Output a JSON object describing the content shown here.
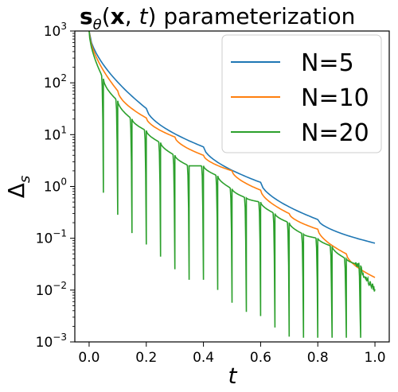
{
  "chart_data": {
    "type": "line",
    "title_parts": {
      "bold_s": "s",
      "theta": "θ",
      "open": "(",
      "bold_x": "x",
      "rest": ", ",
      "t": "t",
      "close": ")",
      "tail": " parameterization"
    },
    "xlabel": "t",
    "ylabel_base": "Δ",
    "ylabel_sub": "s",
    "xlim": [
      -0.05,
      1.05
    ],
    "ylim": [
      0.001,
      1000
    ],
    "yscale": "log",
    "x_ticks": [
      "0.0",
      "0.2",
      "0.4",
      "0.6",
      "0.8",
      "1.0"
    ],
    "x_tick_values": [
      0.0,
      0.2,
      0.4,
      0.6,
      0.8,
      1.0
    ],
    "y_ticks": [
      {
        "base": "10",
        "exp": "−3",
        "value": 0.001
      },
      {
        "base": "10",
        "exp": "−2",
        "value": 0.01
      },
      {
        "base": "10",
        "exp": "−1",
        "value": 0.1
      },
      {
        "base": "10",
        "exp": "0",
        "value": 1
      },
      {
        "base": "10",
        "exp": "1",
        "value": 10
      },
      {
        "base": "10",
        "exp": "2",
        "value": 100
      },
      {
        "base": "10",
        "exp": "3",
        "value": 1000
      }
    ],
    "legend_position": "top-right",
    "series": [
      {
        "name": "N=5",
        "color": "#1f77b4",
        "restarts": [
          0.0,
          0.2,
          0.4,
          0.6,
          0.8
        ],
        "resets": [
          1000,
          32,
          5.8,
          1.2,
          0.23
        ]
      },
      {
        "name": "N=10",
        "color": "#ff7f0e",
        "restarts": [
          0.0,
          0.1,
          0.2,
          0.3,
          0.4,
          0.5,
          0.6,
          0.7,
          0.8,
          0.9
        ],
        "resets": [
          1000,
          70,
          21,
          9,
          4.0,
          2.0,
          0.85,
          0.3,
          0.15,
          0.05
        ]
      },
      {
        "name": "N=20",
        "color": "#2ca02c",
        "restarts": [
          0.0,
          0.05,
          0.1,
          0.15,
          0.2,
          0.25,
          0.3,
          0.35,
          0.4,
          0.45,
          0.5,
          0.55,
          0.6,
          0.65,
          0.7,
          0.75,
          0.8,
          0.85,
          0.9,
          0.95
        ],
        "resets": [
          1000,
          120,
          45,
          20,
          12,
          7,
          4,
          2.5,
          2.5,
          1.6,
          0.9,
          0.6,
          0.5,
          0.3,
          0.2,
          0.12,
          0.1,
          0.07,
          0.04,
          0.03
        ]
      }
    ],
    "grid": false
  }
}
